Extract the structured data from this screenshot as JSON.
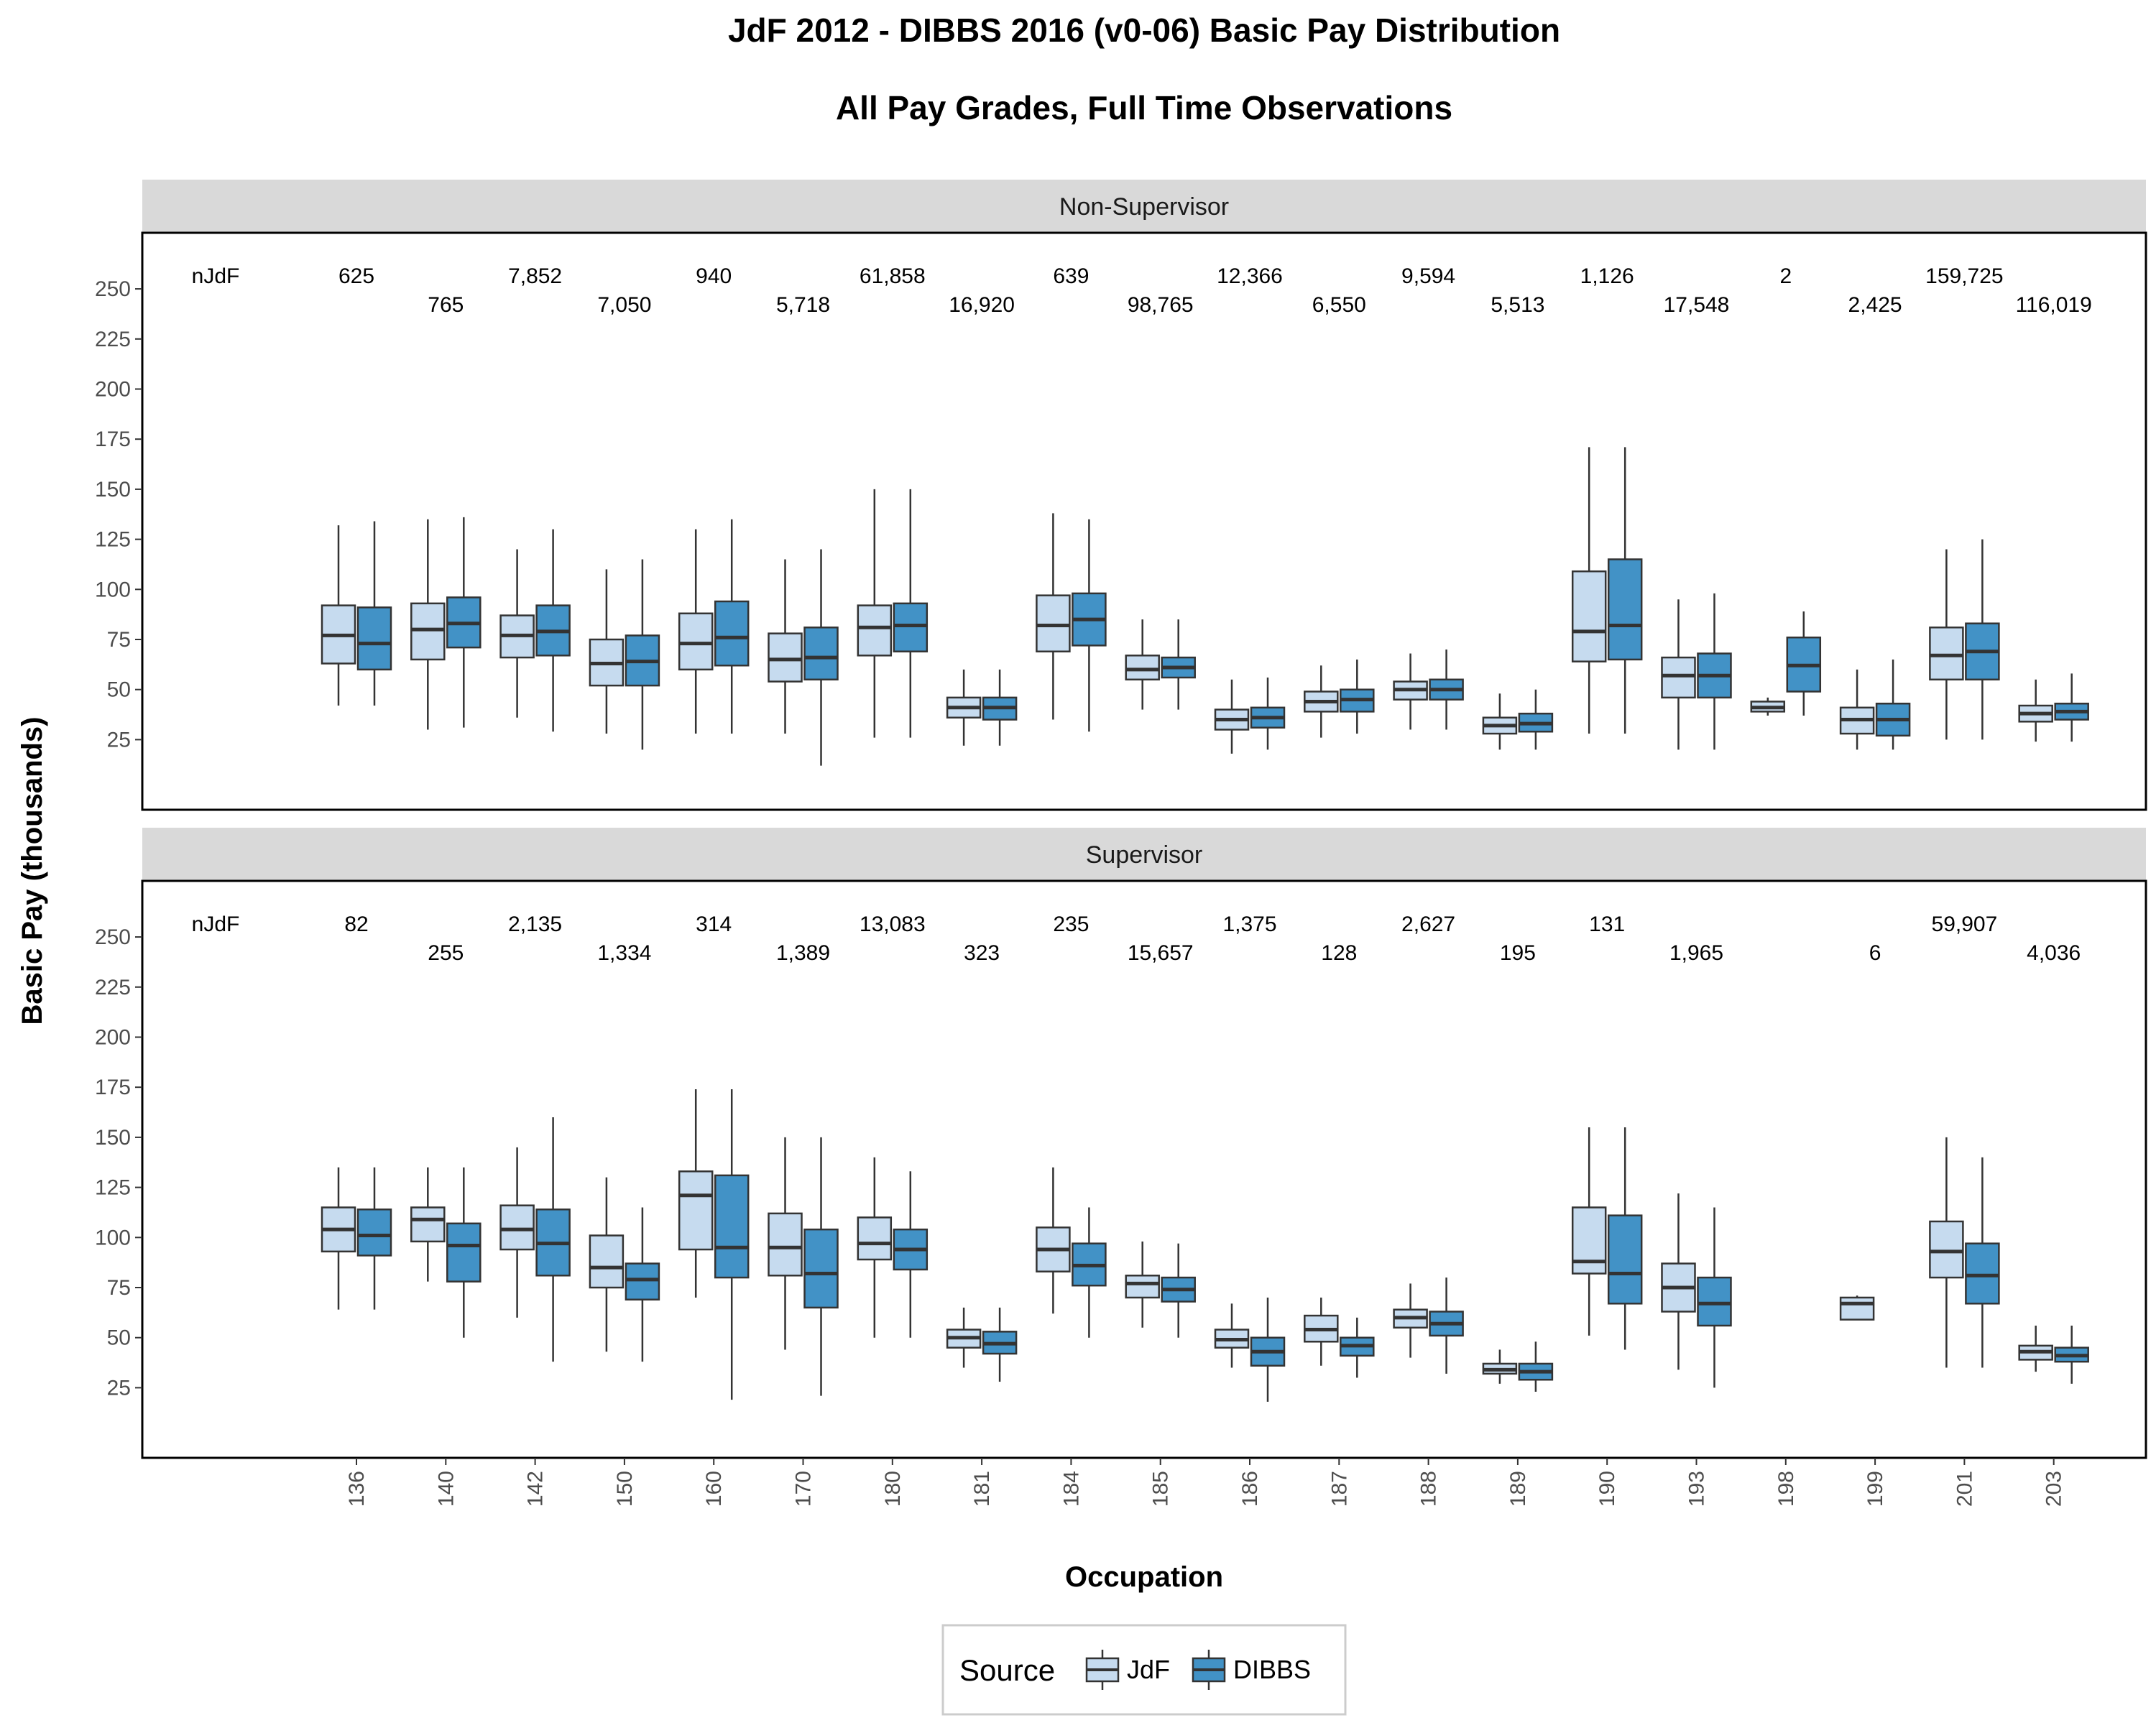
{
  "chart_data": {
    "type": "boxplot",
    "title": "JdF 2012 - DIBBS 2016 (v0-06) Basic Pay Distribution",
    "subtitle": "All Pay Grades, Full Time Observations",
    "xlabel": "Occupation",
    "ylabel": "Basic Pay (thousands)",
    "categories": [
      "136",
      "140",
      "142",
      "150",
      "160",
      "170",
      "180",
      "181",
      "184",
      "185",
      "186",
      "187",
      "188",
      "189",
      "190",
      "193",
      "198",
      "199",
      "201",
      "203"
    ],
    "y_ticks": [
      25,
      50,
      75,
      100,
      125,
      150,
      175,
      200,
      225,
      250
    ],
    "ylim": [
      -10,
      278
    ],
    "legend": {
      "title": "Source",
      "position": "bottom",
      "entries": [
        "JdF",
        "DIBBS"
      ]
    },
    "colors": {
      "JdF": "#c6dbef",
      "DIBBS": "#4292c6",
      "outline": "#333333",
      "strip": "#d9d9d9"
    },
    "grid": false,
    "count_prefix": "nJdF",
    "panels": [
      {
        "label": "Non-Supervisor",
        "counts": [
          "625",
          "765",
          "7,852",
          "7,050",
          "940",
          "5,718",
          "61,858",
          "16,920",
          "639",
          "98,765",
          "12,366",
          "6,550",
          "9,594",
          "5,513",
          "1,126",
          "17,548",
          "2",
          "2,425",
          "159,725",
          "116,019"
        ],
        "series": [
          {
            "name": "JdF",
            "boxes": [
              {
                "min": 42,
                "q1": 63,
                "median": 77,
                "q3": 92,
                "max": 132
              },
              {
                "min": 30,
                "q1": 65,
                "median": 80,
                "q3": 93,
                "max": 135
              },
              {
                "min": 36,
                "q1": 66,
                "median": 77,
                "q3": 87,
                "max": 120
              },
              {
                "min": 28,
                "q1": 52,
                "median": 63,
                "q3": 75,
                "max": 110
              },
              {
                "min": 28,
                "q1": 60,
                "median": 73,
                "q3": 88,
                "max": 130
              },
              {
                "min": 28,
                "q1": 54,
                "median": 65,
                "q3": 78,
                "max": 115
              },
              {
                "min": 26,
                "q1": 67,
                "median": 81,
                "q3": 92,
                "max": 150
              },
              {
                "min": 22,
                "q1": 36,
                "median": 41,
                "q3": 46,
                "max": 60
              },
              {
                "min": 35,
                "q1": 69,
                "median": 82,
                "q3": 97,
                "max": 138
              },
              {
                "min": 40,
                "q1": 55,
                "median": 60,
                "q3": 67,
                "max": 85
              },
              {
                "min": 18,
                "q1": 30,
                "median": 35,
                "q3": 40,
                "max": 55
              },
              {
                "min": 26,
                "q1": 39,
                "median": 44,
                "q3": 49,
                "max": 62
              },
              {
                "min": 30,
                "q1": 45,
                "median": 50,
                "q3": 54,
                "max": 68
              },
              {
                "min": 20,
                "q1": 28,
                "median": 32,
                "q3": 36,
                "max": 48
              },
              {
                "min": 28,
                "q1": 64,
                "median": 79,
                "q3": 109,
                "max": 171
              },
              {
                "min": 20,
                "q1": 46,
                "median": 57,
                "q3": 66,
                "max": 95
              },
              {
                "min": 37,
                "q1": 39,
                "median": 41,
                "q3": 44,
                "max": 46
              },
              {
                "min": 20,
                "q1": 28,
                "median": 35,
                "q3": 41,
                "max": 60
              },
              {
                "min": 25,
                "q1": 55,
                "median": 67,
                "q3": 81,
                "max": 120
              },
              {
                "min": 24,
                "q1": 34,
                "median": 38,
                "q3": 42,
                "max": 55
              }
            ]
          },
          {
            "name": "DIBBS",
            "boxes": [
              {
                "min": 42,
                "q1": 60,
                "median": 73,
                "q3": 91,
                "max": 134
              },
              {
                "min": 31,
                "q1": 71,
                "median": 83,
                "q3": 96,
                "max": 136
              },
              {
                "min": 29,
                "q1": 67,
                "median": 79,
                "q3": 92,
                "max": 130
              },
              {
                "min": 20,
                "q1": 52,
                "median": 64,
                "q3": 77,
                "max": 115
              },
              {
                "min": 28,
                "q1": 62,
                "median": 76,
                "q3": 94,
                "max": 135
              },
              {
                "min": 12,
                "q1": 55,
                "median": 66,
                "q3": 81,
                "max": 120
              },
              {
                "min": 26,
                "q1": 69,
                "median": 82,
                "q3": 93,
                "max": 150
              },
              {
                "min": 22,
                "q1": 35,
                "median": 41,
                "q3": 46,
                "max": 60
              },
              {
                "min": 29,
                "q1": 72,
                "median": 85,
                "q3": 98,
                "max": 135
              },
              {
                "min": 40,
                "q1": 56,
                "median": 61,
                "q3": 66,
                "max": 85
              },
              {
                "min": 20,
                "q1": 31,
                "median": 36,
                "q3": 41,
                "max": 56
              },
              {
                "min": 28,
                "q1": 39,
                "median": 45,
                "q3": 50,
                "max": 65
              },
              {
                "min": 30,
                "q1": 45,
                "median": 50,
                "q3": 55,
                "max": 70
              },
              {
                "min": 20,
                "q1": 29,
                "median": 33,
                "q3": 38,
                "max": 50
              },
              {
                "min": 28,
                "q1": 65,
                "median": 82,
                "q3": 115,
                "max": 171
              },
              {
                "min": 20,
                "q1": 46,
                "median": 57,
                "q3": 68,
                "max": 98
              },
              {
                "min": 37,
                "q1": 49,
                "median": 62,
                "q3": 76,
                "max": 89
              },
              {
                "min": 20,
                "q1": 27,
                "median": 35,
                "q3": 43,
                "max": 65
              },
              {
                "min": 25,
                "q1": 55,
                "median": 69,
                "q3": 83,
                "max": 125
              },
              {
                "min": 24,
                "q1": 35,
                "median": 39,
                "q3": 43,
                "max": 58
              }
            ]
          }
        ]
      },
      {
        "label": "Supervisor",
        "counts": [
          "82",
          "255",
          "2,135",
          "1,334",
          "314",
          "1,389",
          "13,083",
          "323",
          "235",
          "15,657",
          "1,375",
          "128",
          "2,627",
          "195",
          "131",
          "1,965",
          "",
          "6",
          "59,907",
          "4,036"
        ],
        "series": [
          {
            "name": "JdF",
            "boxes": [
              {
                "min": 64,
                "q1": 93,
                "median": 104,
                "q3": 115,
                "max": 135
              },
              {
                "min": 78,
                "q1": 98,
                "median": 109,
                "q3": 115,
                "max": 135
              },
              {
                "min": 60,
                "q1": 94,
                "median": 104,
                "q3": 116,
                "max": 145
              },
              {
                "min": 43,
                "q1": 75,
                "median": 85,
                "q3": 101,
                "max": 130
              },
              {
                "min": 70,
                "q1": 94,
                "median": 121,
                "q3": 133,
                "max": 174
              },
              {
                "min": 44,
                "q1": 81,
                "median": 95,
                "q3": 112,
                "max": 150
              },
              {
                "min": 50,
                "q1": 89,
                "median": 97,
                "q3": 110,
                "max": 140
              },
              {
                "min": 35,
                "q1": 45,
                "median": 50,
                "q3": 54,
                "max": 65
              },
              {
                "min": 62,
                "q1": 83,
                "median": 94,
                "q3": 105,
                "max": 135
              },
              {
                "min": 55,
                "q1": 70,
                "median": 77,
                "q3": 81,
                "max": 98
              },
              {
                "min": 35,
                "q1": 45,
                "median": 49,
                "q3": 54,
                "max": 67
              },
              {
                "min": 36,
                "q1": 48,
                "median": 54,
                "q3": 61,
                "max": 70
              },
              {
                "min": 40,
                "q1": 55,
                "median": 60,
                "q3": 64,
                "max": 77
              },
              {
                "min": 27,
                "q1": 32,
                "median": 34,
                "q3": 37,
                "max": 44
              },
              {
                "min": 51,
                "q1": 82,
                "median": 88,
                "q3": 115,
                "max": 155
              },
              {
                "min": 34,
                "q1": 63,
                "median": 75,
                "q3": 87,
                "max": 122
              },
              null,
              {
                "min": 59,
                "q1": 59,
                "median": 67,
                "q3": 70,
                "max": 71
              },
              {
                "min": 35,
                "q1": 80,
                "median": 93,
                "q3": 108,
                "max": 150
              },
              {
                "min": 33,
                "q1": 39,
                "median": 43,
                "q3": 46,
                "max": 56
              }
            ]
          },
          {
            "name": "DIBBS",
            "boxes": [
              {
                "min": 64,
                "q1": 91,
                "median": 101,
                "q3": 114,
                "max": 135
              },
              {
                "min": 50,
                "q1": 78,
                "median": 96,
                "q3": 107,
                "max": 135
              },
              {
                "min": 38,
                "q1": 81,
                "median": 97,
                "q3": 114,
                "max": 160
              },
              {
                "min": 38,
                "q1": 69,
                "median": 79,
                "q3": 87,
                "max": 115
              },
              {
                "min": 19,
                "q1": 80,
                "median": 95,
                "q3": 131,
                "max": 174
              },
              {
                "min": 21,
                "q1": 65,
                "median": 82,
                "q3": 104,
                "max": 150
              },
              {
                "min": 50,
                "q1": 84,
                "median": 94,
                "q3": 104,
                "max": 133
              },
              {
                "min": 28,
                "q1": 42,
                "median": 47,
                "q3": 53,
                "max": 65
              },
              {
                "min": 50,
                "q1": 76,
                "median": 86,
                "q3": 97,
                "max": 115
              },
              {
                "min": 50,
                "q1": 68,
                "median": 74,
                "q3": 80,
                "max": 97
              },
              {
                "min": 18,
                "q1": 36,
                "median": 43,
                "q3": 50,
                "max": 70
              },
              {
                "min": 30,
                "q1": 41,
                "median": 46,
                "q3": 50,
                "max": 60
              },
              {
                "min": 32,
                "q1": 51,
                "median": 57,
                "q3": 63,
                "max": 80
              },
              {
                "min": 23,
                "q1": 29,
                "median": 33,
                "q3": 37,
                "max": 48
              },
              {
                "min": 44,
                "q1": 67,
                "median": 82,
                "q3": 111,
                "max": 155
              },
              {
                "min": 25,
                "q1": 56,
                "median": 67,
                "q3": 80,
                "max": 115
              },
              null,
              null,
              {
                "min": 35,
                "q1": 67,
                "median": 81,
                "q3": 97,
                "max": 140
              },
              {
                "min": 27,
                "q1": 38,
                "median": 41,
                "q3": 45,
                "max": 56
              }
            ]
          }
        ]
      }
    ]
  }
}
